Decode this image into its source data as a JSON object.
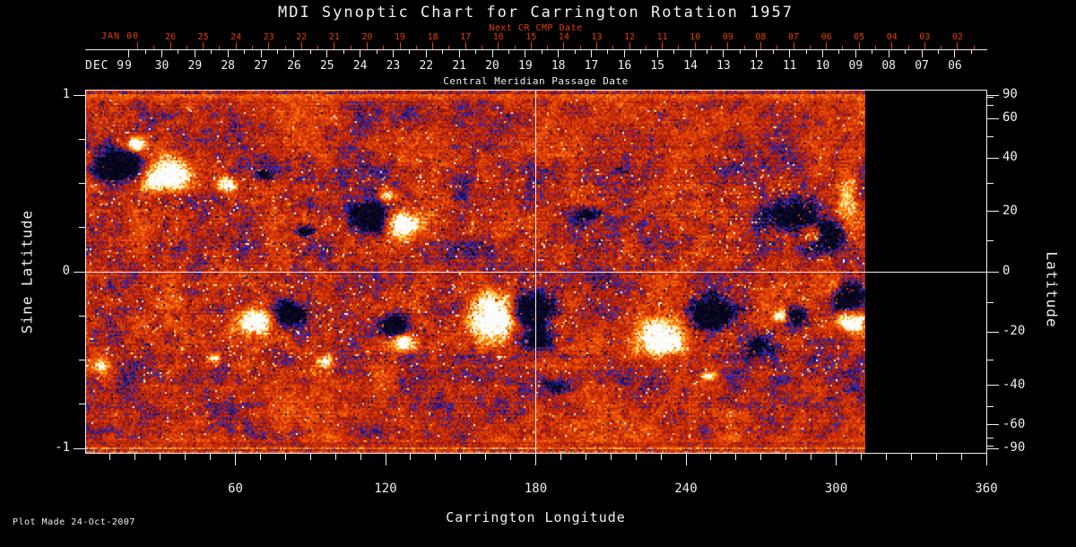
{
  "title": "MDI Synoptic Chart for Carrington Rotation 1957",
  "annotations": {
    "plot_made": "Plot Made 24-Oct-2007"
  },
  "top_axis": {
    "heading": "Next CR CMP Date",
    "next_cr_month": "JAN 00",
    "next_cr_days": [
      "26",
      "25",
      "24",
      "23",
      "22",
      "21",
      "20",
      "19",
      "18",
      "17",
      "16",
      "15",
      "14",
      "13",
      "12",
      "11",
      "10",
      "09",
      "08",
      "07",
      "06",
      "05",
      "04",
      "03",
      "02"
    ],
    "current_month": "DEC 99",
    "current_days": [
      "30",
      "29",
      "28",
      "27",
      "26",
      "25",
      "24",
      "23",
      "22",
      "21",
      "20",
      "19",
      "18",
      "17",
      "16",
      "15",
      "14",
      "13",
      "12",
      "11",
      "10",
      "09",
      "08",
      "07",
      "06"
    ],
    "footer": "Central Meridian Passage Date"
  },
  "axes": {
    "bottom": {
      "label": "Carrington Longitude",
      "major_ticks": [
        60,
        120,
        180,
        240,
        300,
        360
      ],
      "minor_step_deg": 10,
      "range": [
        0,
        360
      ]
    },
    "left": {
      "label": "Sine Latitude",
      "major_ticks": [
        1,
        0,
        -1
      ],
      "minor_ticks": [
        0.75,
        0.5,
        0.25,
        -0.25,
        -0.5,
        -0.75
      ],
      "range": [
        -1,
        1
      ]
    },
    "right": {
      "label": "Latitude",
      "major_ticks": [
        90,
        60,
        40,
        20,
        0,
        -20,
        -40,
        -60,
        -90
      ],
      "minor_ticks": [
        80,
        70,
        50,
        30,
        10,
        -10,
        -30,
        -50,
        -70,
        -80
      ],
      "range": [
        -90,
        90
      ]
    }
  },
  "colors": {
    "background": "#000000",
    "text_white": "#f0f0f0",
    "accent_red": "#e84000",
    "grid_line": "#f0f0f0"
  },
  "chart_data": {
    "type": "heatmap",
    "title": "MDI Synoptic Chart for Carrington Rotation 1957",
    "xlabel": "Carrington Longitude",
    "ylabel_left": "Sine Latitude",
    "ylabel_right": "Latitude",
    "xlim": [
      0,
      360
    ],
    "ylim_sine": [
      -1,
      1
    ],
    "x_ticks": [
      60,
      120,
      180,
      240,
      300,
      360
    ],
    "data_coverage_lon": [
      0,
      312
    ],
    "missing_data_lon": [
      312,
      360
    ],
    "grid_lines": {
      "meridian_lon": 180,
      "equator_sine_latitude": 0
    },
    "palette_stops": [
      {
        "max": 0.05,
        "color": "#080620"
      },
      {
        "max": 0.11,
        "color": "#0f0f46"
      },
      {
        "max": 0.17,
        "color": "#1e1e8c"
      },
      {
        "max": 0.23,
        "color": "#3c28aa"
      },
      {
        "max": 0.29,
        "color": "#78193c"
      },
      {
        "max": 0.36,
        "color": "#a51e0f"
      },
      {
        "max": 0.5,
        "color": "#c82d08"
      },
      {
        "max": 0.63,
        "color": "#e64b05"
      },
      {
        "max": 0.73,
        "color": "#fa6e0c"
      },
      {
        "max": 0.81,
        "color": "#ff9b23"
      },
      {
        "max": 0.88,
        "color": "#ffcd46"
      },
      {
        "max": 0.94,
        "color": "#ffeea0"
      },
      {
        "max": 1.01,
        "color": "#ffffff"
      }
    ],
    "active_regions": [
      {
        "lon": 14.3,
        "sinlat": 0.6,
        "rlon": 10.0,
        "rsl": 0.081,
        "pol": -1,
        "amp": 0.95
      },
      {
        "lon": 20.4,
        "sinlat": 0.72,
        "rlon": 4.3,
        "rsl": 0.041,
        "pol": 1,
        "amp": 0.7
      },
      {
        "lon": 32.2,
        "sinlat": 0.54,
        "rlon": 11.5,
        "rsl": 0.086,
        "pol": 1,
        "amp": 0.95
      },
      {
        "lon": 56.2,
        "sinlat": 0.49,
        "rlon": 4.3,
        "rsl": 0.041,
        "pol": 1,
        "amp": 0.8
      },
      {
        "lon": 71.6,
        "sinlat": 0.55,
        "rlon": 2.9,
        "rsl": 0.025,
        "pol": -1,
        "amp": 0.6
      },
      {
        "lon": 88.1,
        "sinlat": 0.23,
        "rlon": 3.6,
        "rsl": 0.03,
        "pol": -1,
        "amp": 0.7
      },
      {
        "lon": 113.5,
        "sinlat": 0.31,
        "rlon": 7.9,
        "rsl": 0.081,
        "pol": -1,
        "amp": 0.95
      },
      {
        "lon": 126.4,
        "sinlat": 0.27,
        "rlon": 7.2,
        "rsl": 0.076,
        "pol": 1,
        "amp": 0.9
      },
      {
        "lon": 120.7,
        "sinlat": 0.43,
        "rlon": 3.2,
        "rsl": 0.03,
        "pol": 1,
        "amp": 0.7
      },
      {
        "lon": 200.6,
        "sinlat": 0.32,
        "rlon": 5.0,
        "rsl": 0.036,
        "pol": -1,
        "amp": 0.5
      },
      {
        "lon": 281.2,
        "sinlat": 0.32,
        "rlon": 8.6,
        "rsl": 0.091,
        "pol": -1,
        "amp": 0.85
      },
      {
        "lon": 297.3,
        "sinlat": 0.21,
        "rlon": 7.2,
        "rsl": 0.081,
        "pol": -1,
        "amp": 0.9
      },
      {
        "lon": 291.9,
        "sinlat": 0.21,
        "rlon": 3.9,
        "rsl": 0.046,
        "pol": 1,
        "amp": 0.8
      },
      {
        "lon": 304.5,
        "sinlat": 0.4,
        "rlon": 4.7,
        "rsl": 0.152,
        "pol": 1,
        "amp": 0.5
      },
      {
        "lon": 68.1,
        "sinlat": -0.28,
        "rlon": 7.2,
        "rsl": 0.071,
        "pol": 1,
        "amp": 0.85
      },
      {
        "lon": 81.3,
        "sinlat": -0.24,
        "rlon": 6.4,
        "rsl": 0.061,
        "pol": -1,
        "amp": 0.9
      },
      {
        "lon": 95.6,
        "sinlat": -0.51,
        "rlon": 3.6,
        "rsl": 0.036,
        "pol": 1,
        "amp": 0.75
      },
      {
        "lon": 124.3,
        "sinlat": -0.3,
        "rlon": 5.7,
        "rsl": 0.056,
        "pol": -1,
        "amp": 0.85
      },
      {
        "lon": 127.2,
        "sinlat": -0.4,
        "rlon": 5.4,
        "rsl": 0.051,
        "pol": 1,
        "amp": 0.8
      },
      {
        "lon": 163.7,
        "sinlat": -0.26,
        "rlon": 9.3,
        "rsl": 0.142,
        "pol": 1,
        "amp": 0.95
      },
      {
        "lon": 178.0,
        "sinlat": -0.21,
        "rlon": 8.6,
        "rsl": 0.081,
        "pol": -1,
        "amp": 0.95
      },
      {
        "lon": 180.9,
        "sinlat": -0.39,
        "rlon": 6.4,
        "rsl": 0.071,
        "pol": -1,
        "amp": 0.55
      },
      {
        "lon": 229.2,
        "sinlat": -0.38,
        "rlon": 10.0,
        "rsl": 0.112,
        "pol": 1,
        "amp": 0.95
      },
      {
        "lon": 250.7,
        "sinlat": -0.24,
        "rlon": 10.7,
        "rsl": 0.102,
        "pol": -1,
        "amp": 0.9
      },
      {
        "lon": 268.6,
        "sinlat": -0.42,
        "rlon": 7.2,
        "rsl": 0.061,
        "pol": -1,
        "amp": 0.5
      },
      {
        "lon": 278.3,
        "sinlat": -0.25,
        "rlon": 3.2,
        "rsl": 0.036,
        "pol": 1,
        "amp": 0.85
      },
      {
        "lon": 284.0,
        "sinlat": -0.25,
        "rlon": 5.0,
        "rsl": 0.061,
        "pol": -1,
        "amp": 0.75
      },
      {
        "lon": 249.0,
        "sinlat": -0.59,
        "rlon": 2.9,
        "rsl": 0.025,
        "pol": 1,
        "amp": 0.7
      },
      {
        "lon": 299.1,
        "sinlat": -0.08,
        "rlon": 5.0,
        "rsl": 0.081,
        "pol": 1,
        "amp": 0.5
      },
      {
        "lon": 304.5,
        "sinlat": -0.14,
        "rlon": 7.2,
        "rsl": 0.081,
        "pol": -1,
        "amp": 0.85
      },
      {
        "lon": 306.3,
        "sinlat": -0.28,
        "rlon": 5.7,
        "rsl": 0.061,
        "pol": 1,
        "amp": 0.85
      },
      {
        "lon": 6.1,
        "sinlat": -0.53,
        "rlon": 5.0,
        "rsl": 0.061,
        "pol": 1,
        "amp": 0.6
      },
      {
        "lon": 51.9,
        "sinlat": -0.49,
        "rlon": 2.9,
        "rsl": 0.03,
        "pol": 1,
        "amp": 0.7
      },
      {
        "lon": 189.9,
        "sinlat": -0.65,
        "rlon": 5.7,
        "rsl": 0.041,
        "pol": -1,
        "amp": 0.45
      }
    ]
  }
}
